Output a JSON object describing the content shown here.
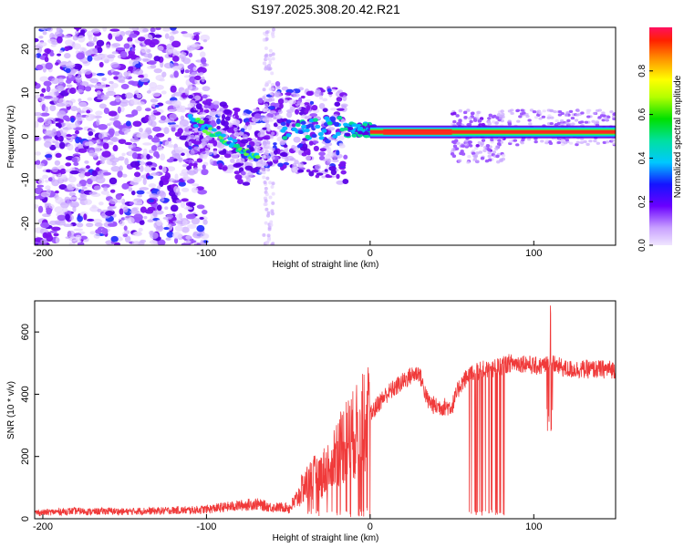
{
  "title": "S197.2025.308.20.42.R21",
  "chart_data": [
    {
      "type": "heatmap",
      "xlabel": "Height of straight line (km)",
      "ylabel": "Frequency (Hz)",
      "xlim": [
        -205,
        150
      ],
      "ylim": [
        -25,
        25
      ],
      "xticks": [
        "-200",
        "-100",
        "0",
        "100"
      ],
      "xtick_values": [
        -200,
        -100,
        0,
        100
      ],
      "yticks": [
        "-20",
        "-10",
        "0",
        "10",
        "20"
      ],
      "ytick_values": [
        -20,
        -10,
        0,
        10,
        20
      ],
      "colorbar": {
        "label": "Normalized spectral amplitude",
        "range": [
          0,
          1
        ],
        "ticks": [
          "0.0",
          "0.2",
          "0.4",
          "0.6",
          "0.8"
        ],
        "tick_values": [
          0.0,
          0.2,
          0.4,
          0.6,
          0.8
        ]
      },
      "carrier_band": {
        "x_start": 0,
        "x_end": 150,
        "frequency": 1
      }
    },
    {
      "type": "line",
      "xlabel": "Height of straight line (km)",
      "ylabel": "SNR (10 * v/v)",
      "xlim": [
        -205,
        150
      ],
      "ylim": [
        0,
        700
      ],
      "xticks": [
        "-200",
        "-100",
        "0",
        "100"
      ],
      "xtick_values": [
        -200,
        -100,
        0,
        100
      ],
      "yticks": [
        "0",
        "200",
        "400",
        "600"
      ],
      "ytick_values": [
        0,
        200,
        400,
        600
      ],
      "color": "#f03a3a",
      "series": [
        {
          "name": "SNR",
          "x": [
            -205,
            -190,
            -180,
            -170,
            -160,
            -150,
            -140,
            -130,
            -120,
            -110,
            -100,
            -90,
            -80,
            -70,
            -60,
            -50,
            -45,
            -40,
            -35,
            -30,
            -25,
            -20,
            -15,
            -10,
            -5,
            0,
            5,
            10,
            15,
            20,
            25,
            30,
            35,
            40,
            45,
            50,
            55,
            60,
            65,
            70,
            75,
            80,
            85,
            90,
            95,
            100,
            105,
            110,
            115,
            120,
            130,
            140,
            150
          ],
          "y": [
            15,
            18,
            20,
            18,
            20,
            18,
            20,
            20,
            22,
            22,
            25,
            30,
            35,
            40,
            30,
            30,
            60,
            110,
            130,
            140,
            170,
            220,
            250,
            270,
            300,
            330,
            370,
            400,
            420,
            440,
            460,
            470,
            380,
            360,
            360,
            360,
            430,
            460,
            470,
            480,
            480,
            490,
            500,
            500,
            500,
            490,
            490,
            500,
            490,
            480,
            480,
            480,
            480
          ]
        }
      ]
    }
  ]
}
